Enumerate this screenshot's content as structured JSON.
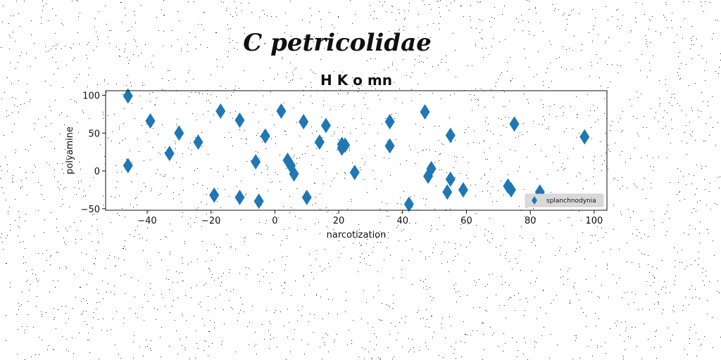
{
  "chart_data": {
    "type": "scatter",
    "suptitle": "C petricolidae",
    "title": "H K o mn",
    "xlabel": "narcotization",
    "ylabel": "polyamine",
    "xlim": [
      -53,
      104
    ],
    "ylim": [
      -52,
      106
    ],
    "xticks": [
      -40,
      -20,
      0,
      20,
      40,
      60,
      80,
      100
    ],
    "yticks": [
      -50,
      0,
      50,
      100
    ],
    "grid": false,
    "legend_position": "lower-right",
    "series": [
      {
        "name": "splanchnodynia",
        "color": "#1f77b4",
        "marker": "diamond",
        "points": [
          [
            -46,
            99
          ],
          [
            -46,
            7
          ],
          [
            -39,
            66
          ],
          [
            -33,
            23
          ],
          [
            -30,
            50
          ],
          [
            -24,
            38
          ],
          [
            -19,
            -32
          ],
          [
            -17,
            79
          ],
          [
            -11,
            67
          ],
          [
            -11,
            -35
          ],
          [
            -6,
            12
          ],
          [
            -5,
            -40
          ],
          [
            -3,
            46
          ],
          [
            2,
            79
          ],
          [
            4,
            14
          ],
          [
            5,
            7
          ],
          [
            6,
            -4
          ],
          [
            9,
            65
          ],
          [
            10,
            -35
          ],
          [
            14,
            38
          ],
          [
            16,
            60
          ],
          [
            21,
            30
          ],
          [
            21,
            35
          ],
          [
            22,
            34
          ],
          [
            25,
            -2
          ],
          [
            36,
            65
          ],
          [
            36,
            33
          ],
          [
            42,
            -44
          ],
          [
            47,
            78
          ],
          [
            48,
            -7
          ],
          [
            49,
            3
          ],
          [
            54,
            -28
          ],
          [
            55,
            -11
          ],
          [
            55,
            47
          ],
          [
            59,
            -25
          ],
          [
            73,
            -20
          ],
          [
            74,
            -25
          ],
          [
            75,
            62
          ],
          [
            83,
            -28
          ],
          [
            97,
            45
          ]
        ]
      }
    ]
  }
}
